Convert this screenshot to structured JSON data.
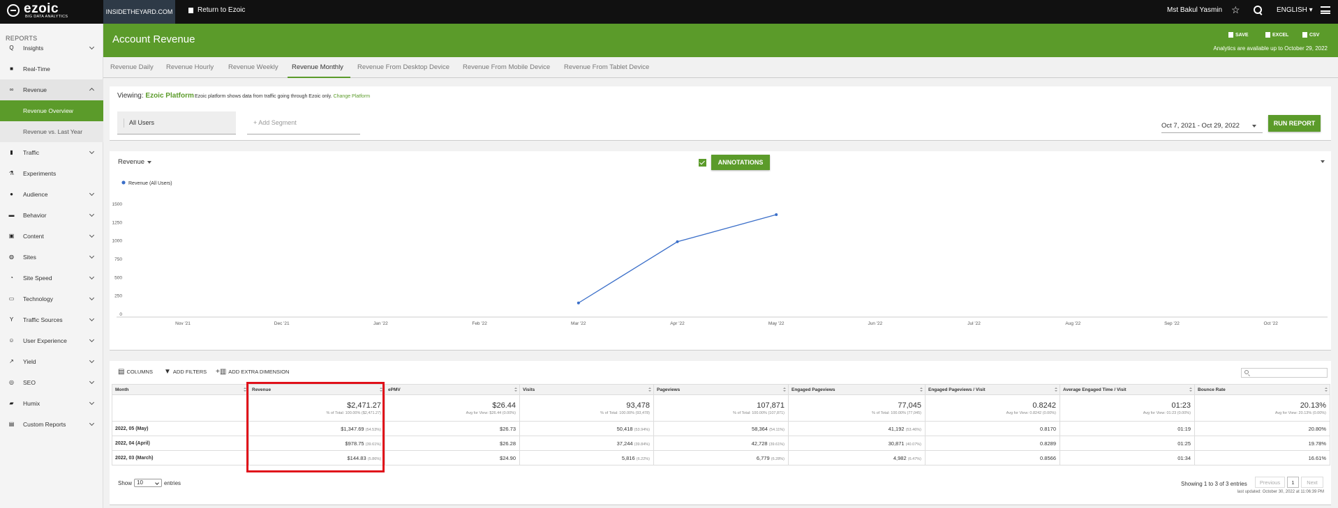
{
  "topbar": {
    "logo_word": "ezoic",
    "logo_sub": "BIG DATA ANALYTICS",
    "site": "INSIDETHEYARD.COM",
    "return_label": "Return to Ezoic",
    "user": "Mst Bakul Yasmin",
    "language": "ENGLISH ▾"
  },
  "sidebar": {
    "heading": "REPORTS",
    "items": [
      {
        "label": "Insights",
        "icon": "Q"
      },
      {
        "label": "Real-Time",
        "icon": "■"
      },
      {
        "label": "Revenue",
        "icon": "∞"
      },
      {
        "label": "Traffic",
        "icon": "▮"
      },
      {
        "label": "Experiments",
        "icon": "⚗"
      },
      {
        "label": "Audience",
        "icon": "●"
      },
      {
        "label": "Behavior",
        "icon": "▬"
      },
      {
        "label": "Content",
        "icon": "▣"
      },
      {
        "label": "Sites",
        "icon": "◍"
      },
      {
        "label": "Site Speed",
        "icon": "◔"
      },
      {
        "label": "Technology",
        "icon": "▭"
      },
      {
        "label": "Traffic Sources",
        "icon": "Y"
      },
      {
        "label": "User Experience",
        "icon": "☺"
      },
      {
        "label": "Yield",
        "icon": "↗"
      },
      {
        "label": "SEO",
        "icon": "◎"
      },
      {
        "label": "Humix",
        "icon": "▰"
      },
      {
        "label": "Custom Reports",
        "icon": "▤"
      }
    ],
    "subitems": [
      {
        "label": "Revenue Overview"
      },
      {
        "label": "Revenue vs. Last Year"
      }
    ]
  },
  "header": {
    "title": "Account Revenue",
    "save": "SAVE",
    "excel": "EXCEL",
    "csv": "CSV",
    "note": "Analytics are available up to October 29, 2022"
  },
  "tabs": [
    "Revenue Daily",
    "Revenue Hourly",
    "Revenue Weekly",
    "Revenue Monthly",
    "Revenue From Desktop Device",
    "Revenue From Mobile Device",
    "Revenue From Tablet Device"
  ],
  "platform": {
    "viewing_label": "Viewing:",
    "platform_name": "Ezoic Platform",
    "note": "Ezoic platform shows data from traffic going through Ezoic only.",
    "change_link": "Change Platform"
  },
  "segments": {
    "all_users": "All Users",
    "add_segment": "+ Add Segment"
  },
  "date_range": "Oct 7, 2021 - Oct 29, 2022",
  "run_report": "RUN REPORT",
  "chart_controls": {
    "metric": "Revenue",
    "annotations": "ANNOTATIONS"
  },
  "chart_data": {
    "type": "line",
    "series": [
      {
        "name": "Revenue (All Users)",
        "x": [
          "Mar '22",
          "Apr '22",
          "May '22"
        ],
        "values": [
          144.83,
          978.75,
          1347.69
        ]
      }
    ],
    "x_ticks": [
      "Nov '21",
      "Dec '21",
      "Jan '22",
      "Feb '22",
      "Mar '22",
      "Apr '22",
      "May '22",
      "Jun '22",
      "Jul '22",
      "Aug '22",
      "Sep '22",
      "Oct '22"
    ],
    "y_ticks": [
      0,
      250,
      500,
      750,
      1000,
      1250,
      1500
    ],
    "ylim": [
      0,
      1500
    ],
    "color": "#3b6fc9",
    "legend": "top-left"
  },
  "toolbar": {
    "columns": "COLUMNS",
    "filters": "ADD FILTERS",
    "dimension": "ADD EXTRA DIMENSION"
  },
  "table": {
    "headers": [
      "Month",
      "Revenue",
      "ePMV",
      "Visits",
      "Pageviews",
      "Engaged Pageviews",
      "Engaged Pageviews / Visit",
      "Average Engaged Time / Visit",
      "Bounce Rate"
    ],
    "totals": [
      {
        "big": "",
        "small": ""
      },
      {
        "big": "$2,471.27",
        "small": "% of Total: 100.00% ($2,471.27)"
      },
      {
        "big": "$26.44",
        "small": "Avg for View: $26.44 (0.00%)"
      },
      {
        "big": "93,478",
        "small": "% of Total: 100.00% (93,478)"
      },
      {
        "big": "107,871",
        "small": "% of Total: 100.00% (107,871)"
      },
      {
        "big": "77,045",
        "small": "% of Total: 100.00% (77,045)"
      },
      {
        "big": "0.8242",
        "small": "Avg for View: 0.8242 (0.00%)"
      },
      {
        "big": "01:23",
        "small": "Avg for View: 01:23 (0.00%)"
      },
      {
        "big": "20.13%",
        "small": "Avg for View: 20.13% (0.00%)"
      }
    ],
    "rows": [
      {
        "month": "2022, 05 (May)",
        "revenue": "$1,347.69",
        "revenue_pct": "(54.53%)",
        "epmv": "$26.73",
        "visits": "50,418",
        "visits_pct": "(53.94%)",
        "pageviews": "58,364",
        "pageviews_pct": "(54.11%)",
        "engaged": "41,192",
        "engaged_pct": "(53.46%)",
        "epv": "0.8170",
        "time": "01:19",
        "bounce": "20.80%"
      },
      {
        "month": "2022, 04 (April)",
        "revenue": "$978.75",
        "revenue_pct": "(39.61%)",
        "epmv": "$26.28",
        "visits": "37,244",
        "visits_pct": "(39.84%)",
        "pageviews": "42,728",
        "pageviews_pct": "(39.61%)",
        "engaged": "30,871",
        "engaged_pct": "(40.07%)",
        "epv": "0.8289",
        "time": "01:25",
        "bounce": "19.78%"
      },
      {
        "month": "2022, 03 (March)",
        "revenue": "$144.83",
        "revenue_pct": "(5.86%)",
        "epmv": "$24.90",
        "visits": "5,816",
        "visits_pct": "(6.22%)",
        "pageviews": "6,779",
        "pageviews_pct": "(6.28%)",
        "engaged": "4,982",
        "engaged_pct": "(6.47%)",
        "epv": "0.8566",
        "time": "01:34",
        "bounce": "16.61%"
      }
    ]
  },
  "pagination": {
    "show": "Show",
    "entries_value": "10",
    "entries": "entries",
    "showing": "Showing 1 to 3 of 3 entries",
    "previous": "Previous",
    "page": "1",
    "next": "Next",
    "last_updated": "last updated: October 30, 2022 at 11:06:39 PM"
  },
  "colors": {
    "brand_green": "#5b9b2a",
    "topbar": "#111111",
    "highlight": "#e0101a",
    "line": "#3b6fc9"
  }
}
